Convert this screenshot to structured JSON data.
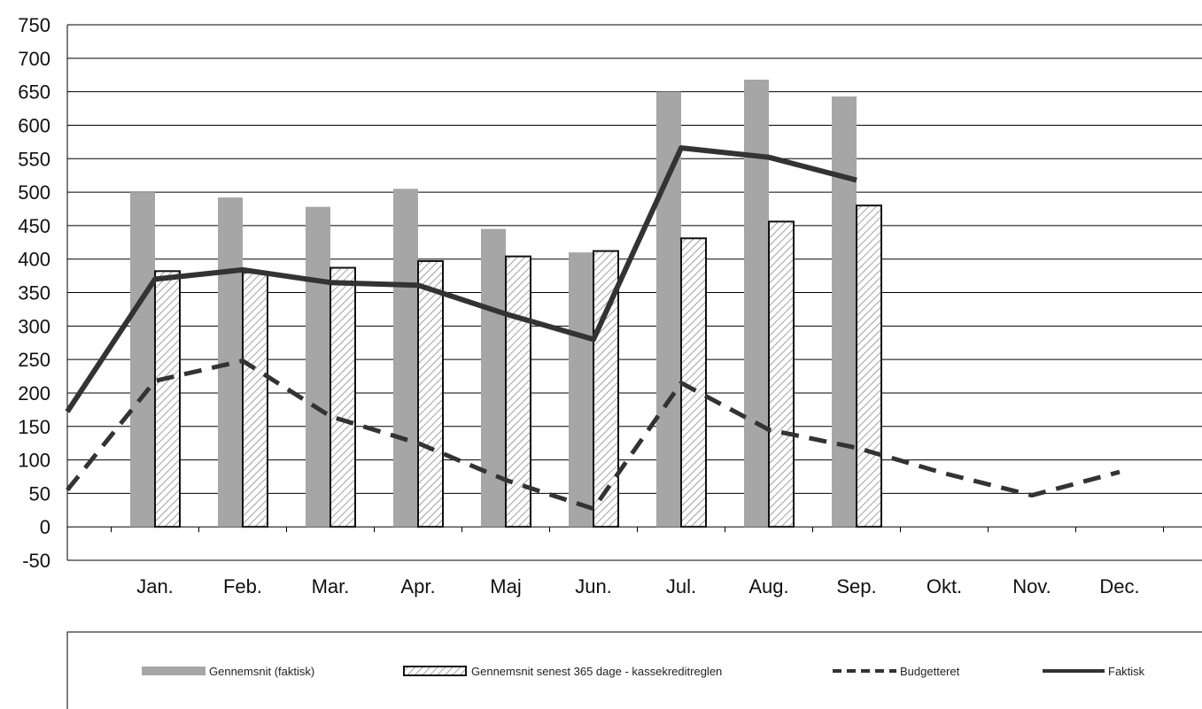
{
  "chart_data": {
    "type": "bar",
    "categories": [
      "Jan.",
      "Feb.",
      "Mar.",
      "Apr.",
      "Maj",
      "Jun.",
      "Jul.",
      "Aug.",
      "Sep.",
      "Okt.",
      "Nov.",
      "Dec."
    ],
    "ylim": [
      -50,
      750
    ],
    "yticks": [
      750,
      700,
      650,
      600,
      550,
      500,
      450,
      400,
      350,
      300,
      250,
      200,
      150,
      100,
      50,
      0,
      -50
    ],
    "grid": true,
    "legend_position": "bottom",
    "series": [
      {
        "name": "Gennemsnit (faktisk)",
        "kind": "bar",
        "color": "#a6a6a6",
        "values": [
          500,
          492,
          478,
          505,
          445,
          410,
          650,
          668,
          643,
          null,
          null,
          null
        ]
      },
      {
        "name": "Gennemsnit senest 365 dage - kassekreditreglen",
        "kind": "bar",
        "color": "#ffffff",
        "values": [
          382,
          380,
          387,
          397,
          404,
          412,
          431,
          456,
          480,
          null,
          null,
          null
        ]
      },
      {
        "name": "Budgetteret",
        "kind": "line",
        "style": "dashed",
        "color": "#333333",
        "start": 55,
        "values": [
          218,
          248,
          165,
          125,
          70,
          27,
          215,
          145,
          118,
          80,
          47,
          82
        ]
      },
      {
        "name": "Faktisk",
        "kind": "line",
        "style": "solid",
        "color": "#333333",
        "start": 172,
        "values": [
          370,
          384,
          365,
          361,
          318,
          280,
          566,
          552,
          518,
          null,
          null,
          null
        ]
      }
    ]
  }
}
